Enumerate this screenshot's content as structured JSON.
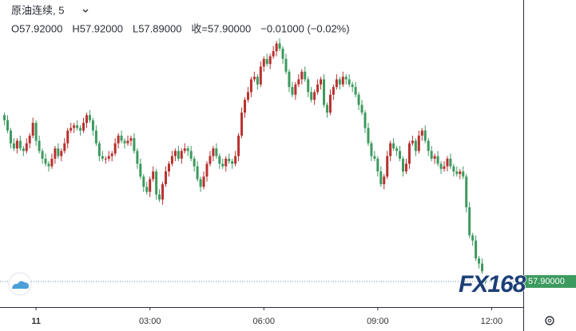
{
  "chart_data": {
    "type": "candlestick",
    "header": {
      "symbol": "原油连续, 5",
      "ohlc": [
        "O57.92000",
        "H57.92000",
        "L57.89000",
        "收=57.90000"
      ],
      "change": "−0.01000 (−0.02%)"
    },
    "last_price_label": "57.90000",
    "watermark": "FX168",
    "up_color": "#b8312f",
    "down_color": "#3d9a5f",
    "xlim": [
      -57,
      770
    ],
    "ylim": [
      57.8,
      59.0
    ],
    "xticks": [
      {
        "value": 0,
        "label": "11"
      },
      {
        "value": 180,
        "label": "03:00"
      },
      {
        "value": 360,
        "label": "06:00"
      },
      {
        "value": 540,
        "label": "09:00"
      },
      {
        "value": 720,
        "label": "12:00"
      }
    ],
    "x": [
      -50,
      -45,
      -40,
      -35,
      -30,
      -25,
      -20,
      -15,
      -10,
      -5,
      0,
      5,
      10,
      15,
      20,
      25,
      30,
      35,
      40,
      45,
      50,
      55,
      60,
      65,
      70,
      75,
      80,
      85,
      90,
      95,
      100,
      105,
      110,
      115,
      120,
      125,
      130,
      135,
      140,
      145,
      150,
      155,
      160,
      165,
      170,
      175,
      180,
      185,
      190,
      195,
      200,
      205,
      210,
      215,
      220,
      225,
      230,
      235,
      240,
      245,
      250,
      255,
      260,
      265,
      270,
      275,
      280,
      285,
      290,
      295,
      300,
      305,
      310,
      315,
      320,
      325,
      330,
      335,
      340,
      345,
      350,
      355,
      360,
      365,
      370,
      375,
      380,
      385,
      390,
      395,
      400,
      405,
      410,
      415,
      420,
      425,
      430,
      435,
      440,
      445,
      450,
      455,
      460,
      465,
      470,
      475,
      480,
      485,
      490,
      495,
      500,
      505,
      510,
      515,
      520,
      525,
      530,
      535,
      540,
      545,
      550,
      555,
      560,
      565,
      570,
      575,
      580,
      585,
      590,
      595,
      600,
      605,
      610,
      615,
      620,
      625,
      630,
      635,
      640,
      645,
      650,
      655,
      660,
      665,
      670,
      675,
      680,
      685,
      690,
      695,
      700,
      705,
      710
    ],
    "open": [
      58.55,
      58.53,
      58.49,
      58.44,
      58.42,
      58.45,
      58.42,
      58.41,
      58.44,
      58.47,
      58.52,
      58.45,
      58.41,
      58.38,
      58.36,
      58.35,
      58.38,
      58.42,
      58.39,
      58.41,
      58.44,
      58.49,
      58.5,
      58.51,
      58.5,
      58.49,
      58.52,
      58.55,
      58.53,
      58.49,
      58.44,
      58.39,
      58.38,
      58.38,
      58.39,
      58.4,
      58.44,
      58.47,
      58.45,
      58.44,
      58.45,
      58.46,
      58.41,
      58.36,
      58.31,
      58.27,
      58.25,
      58.3,
      58.33,
      58.24,
      58.22,
      58.28,
      58.33,
      58.36,
      58.39,
      58.41,
      58.38,
      58.41,
      58.42,
      58.41,
      58.38,
      58.35,
      58.3,
      58.27,
      58.31,
      58.36,
      58.39,
      58.42,
      58.39,
      58.36,
      58.35,
      58.38,
      58.37,
      58.36,
      58.39,
      58.47,
      58.56,
      58.61,
      58.64,
      58.69,
      58.7,
      58.67,
      58.74,
      58.77,
      58.75,
      58.78,
      58.8,
      58.83,
      58.81,
      58.77,
      58.72,
      58.66,
      58.63,
      58.67,
      58.69,
      58.72,
      58.69,
      58.64,
      58.61,
      58.64,
      58.67,
      58.69,
      58.59,
      58.56,
      58.63,
      58.66,
      58.69,
      58.67,
      58.7,
      58.69,
      58.67,
      58.66,
      58.63,
      58.59,
      58.56,
      58.5,
      58.44,
      58.39,
      58.38,
      58.33,
      58.28,
      58.31,
      58.39,
      58.44,
      58.42,
      58.41,
      58.38,
      58.33,
      58.36,
      58.44,
      58.45,
      58.41,
      58.47,
      58.49,
      58.45,
      58.41,
      58.38,
      58.39,
      58.36,
      58.34,
      58.35,
      58.38,
      58.35,
      58.33,
      58.32,
      58.33,
      58.31,
      58.19,
      58.08,
      58.06,
      57.99,
      57.97,
      57.92
    ],
    "high": [
      58.56,
      58.55,
      58.5,
      58.46,
      58.46,
      58.47,
      58.43,
      58.46,
      58.48,
      58.54,
      58.53,
      58.47,
      58.42,
      58.4,
      58.37,
      58.4,
      58.43,
      58.44,
      58.42,
      58.46,
      58.5,
      58.52,
      58.52,
      58.53,
      58.51,
      58.54,
      58.56,
      58.57,
      58.54,
      58.51,
      58.45,
      58.41,
      58.39,
      58.41,
      58.41,
      58.46,
      58.48,
      58.49,
      58.46,
      58.47,
      58.47,
      58.48,
      58.42,
      58.38,
      58.32,
      58.29,
      58.31,
      58.35,
      58.34,
      58.26,
      58.29,
      58.35,
      58.37,
      58.41,
      58.42,
      58.43,
      58.42,
      58.44,
      58.43,
      58.43,
      58.39,
      58.37,
      58.31,
      58.33,
      58.37,
      58.41,
      58.43,
      58.44,
      58.4,
      58.38,
      58.39,
      58.4,
      58.38,
      58.41,
      58.48,
      58.58,
      58.62,
      58.66,
      58.7,
      58.72,
      58.71,
      58.76,
      58.78,
      58.79,
      58.79,
      58.82,
      58.84,
      58.85,
      58.82,
      58.79,
      58.73,
      58.68,
      58.68,
      58.71,
      58.73,
      58.74,
      58.7,
      58.66,
      58.65,
      58.69,
      58.7,
      58.71,
      58.6,
      58.65,
      58.67,
      58.71,
      58.7,
      58.72,
      58.71,
      58.71,
      58.68,
      58.68,
      58.64,
      58.61,
      58.57,
      58.52,
      58.45,
      58.41,
      58.39,
      58.35,
      58.32,
      58.41,
      58.45,
      58.46,
      58.43,
      58.43,
      58.39,
      58.38,
      58.45,
      58.47,
      58.46,
      58.49,
      58.5,
      58.51,
      58.46,
      58.43,
      58.4,
      58.41,
      58.37,
      58.37,
      58.39,
      58.4,
      58.36,
      58.35,
      58.34,
      58.35,
      58.32,
      58.21,
      58.09,
      58.08,
      58.0,
      57.99,
      57.92
    ],
    "low": [
      58.51,
      58.48,
      58.42,
      58.41,
      58.4,
      58.41,
      58.39,
      58.4,
      58.42,
      58.46,
      58.43,
      58.4,
      58.36,
      58.35,
      58.33,
      58.34,
      58.36,
      58.38,
      58.37,
      58.4,
      58.42,
      58.48,
      58.48,
      58.49,
      58.47,
      58.48,
      58.5,
      58.52,
      58.47,
      58.43,
      58.37,
      58.37,
      58.36,
      58.37,
      58.37,
      58.39,
      58.42,
      58.44,
      58.42,
      58.43,
      58.43,
      58.4,
      58.34,
      58.3,
      58.25,
      58.24,
      58.23,
      58.29,
      58.22,
      58.21,
      58.2,
      58.27,
      58.31,
      58.35,
      58.37,
      58.37,
      58.36,
      58.4,
      58.39,
      58.37,
      58.33,
      58.29,
      58.25,
      58.26,
      58.29,
      58.35,
      58.37,
      58.38,
      58.34,
      58.34,
      58.33,
      58.36,
      58.34,
      58.35,
      58.37,
      58.46,
      58.54,
      58.6,
      58.62,
      58.68,
      58.65,
      58.66,
      58.72,
      58.74,
      58.73,
      58.77,
      58.78,
      58.8,
      58.75,
      58.71,
      58.64,
      58.62,
      58.61,
      58.66,
      58.67,
      58.68,
      58.62,
      58.6,
      58.59,
      58.63,
      58.65,
      58.58,
      58.54,
      58.55,
      58.61,
      58.65,
      58.65,
      58.66,
      58.67,
      58.66,
      58.64,
      58.62,
      58.57,
      58.55,
      58.48,
      58.43,
      58.37,
      58.37,
      58.31,
      58.27,
      58.26,
      58.3,
      58.37,
      58.41,
      58.39,
      58.37,
      58.31,
      58.32,
      58.34,
      58.43,
      58.39,
      58.4,
      58.45,
      58.44,
      58.39,
      58.37,
      58.36,
      58.35,
      58.32,
      58.33,
      58.33,
      58.34,
      58.31,
      58.31,
      58.3,
      58.3,
      58.17,
      58.07,
      58.04,
      57.98,
      57.95,
      57.93,
      57.89
    ],
    "close": [
      58.53,
      58.49,
      58.44,
      58.42,
      58.45,
      58.42,
      58.41,
      58.44,
      58.47,
      58.52,
      58.45,
      58.41,
      58.38,
      58.36,
      58.35,
      58.38,
      58.42,
      58.39,
      58.41,
      58.44,
      58.49,
      58.5,
      58.51,
      58.5,
      58.49,
      58.52,
      58.55,
      58.53,
      58.49,
      58.44,
      58.39,
      58.38,
      58.38,
      58.39,
      58.4,
      58.44,
      58.47,
      58.45,
      58.44,
      58.45,
      58.46,
      58.41,
      58.36,
      58.31,
      58.27,
      58.25,
      58.3,
      58.33,
      58.24,
      58.22,
      58.28,
      58.33,
      58.36,
      58.39,
      58.41,
      58.38,
      58.41,
      58.42,
      58.41,
      58.38,
      58.35,
      58.3,
      58.27,
      58.31,
      58.36,
      58.39,
      58.42,
      58.39,
      58.36,
      58.35,
      58.38,
      58.37,
      58.36,
      58.39,
      58.47,
      58.56,
      58.61,
      58.64,
      58.69,
      58.7,
      58.67,
      58.74,
      58.77,
      58.75,
      58.78,
      58.8,
      58.83,
      58.81,
      58.77,
      58.72,
      58.66,
      58.63,
      58.67,
      58.69,
      58.72,
      58.69,
      58.64,
      58.61,
      58.64,
      58.67,
      58.69,
      58.59,
      58.56,
      58.63,
      58.66,
      58.69,
      58.67,
      58.7,
      58.69,
      58.67,
      58.66,
      58.63,
      58.59,
      58.56,
      58.5,
      58.44,
      58.39,
      58.38,
      58.33,
      58.28,
      58.31,
      58.39,
      58.44,
      58.42,
      58.41,
      58.38,
      58.33,
      58.36,
      58.44,
      58.45,
      58.41,
      58.47,
      58.49,
      58.45,
      58.41,
      58.38,
      58.39,
      58.36,
      58.34,
      58.35,
      58.38,
      58.35,
      58.33,
      58.32,
      58.33,
      58.31,
      58.19,
      58.08,
      58.06,
      57.99,
      57.97,
      57.94,
      57.9
    ]
  }
}
